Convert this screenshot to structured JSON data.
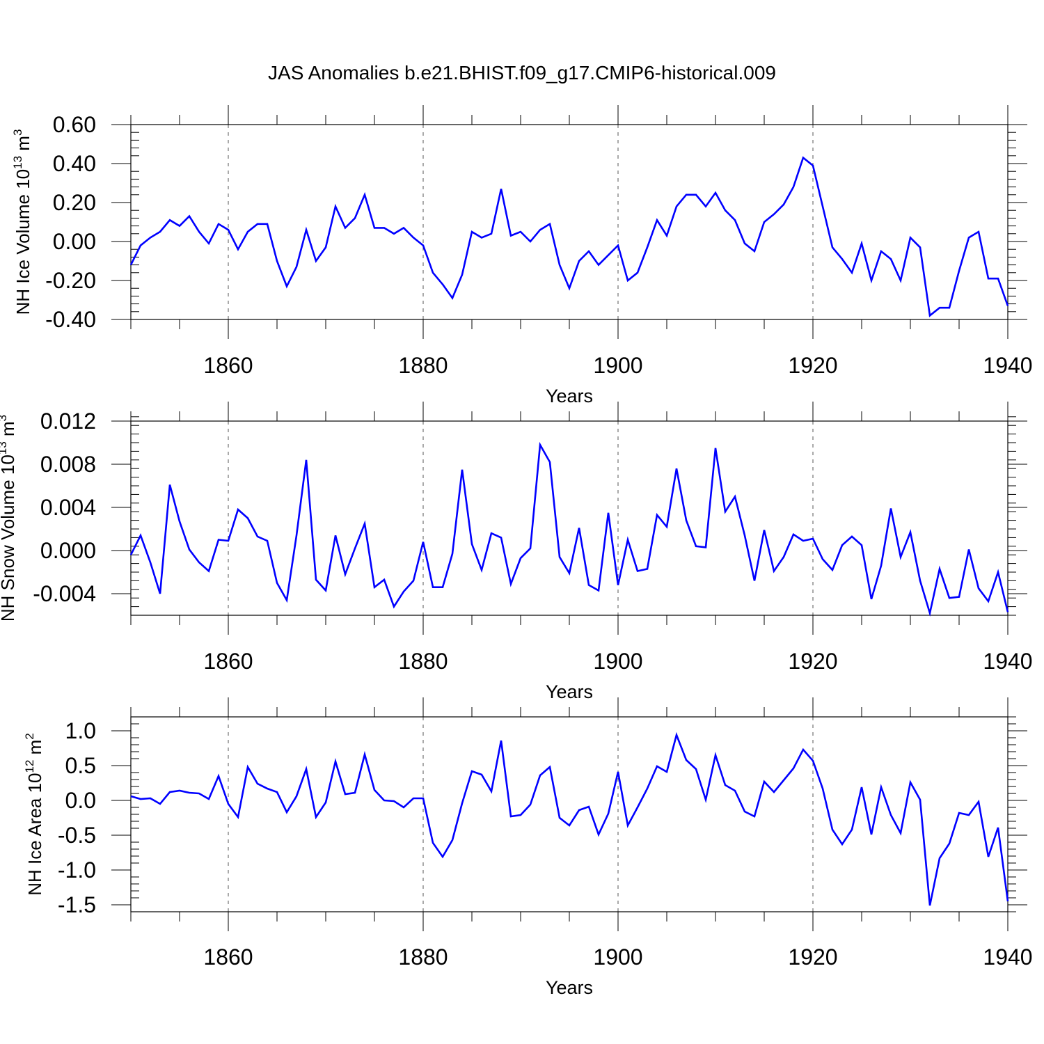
{
  "title": "JAS Anomalies b.e21.BHIST.f09_g17.CMIP6-historical.009",
  "colors": {
    "line": "#0000ff",
    "axis": "#000000",
    "grid": "#555555"
  },
  "chart_data": [
    {
      "type": "line",
      "name": "ice-volume",
      "ylabel": {
        "text": "NH Ice Volume 10",
        "exp": "13",
        "unit": " m",
        "unit_exp": "3"
      },
      "xlabel": "Years",
      "xlim": [
        1850,
        1940
      ],
      "ylim": [
        -0.4,
        0.6
      ],
      "yticks": [
        -0.4,
        -0.2,
        0.0,
        0.2,
        0.4,
        0.6
      ],
      "yticklabels": [
        "-0.40",
        "-0.20",
        "0.00",
        "0.20",
        "0.40",
        "0.60"
      ],
      "yminor": 0.04,
      "xticks": [
        1860,
        1880,
        1900,
        1920,
        1940
      ],
      "xticklabels": [
        "1860",
        "1880",
        "1900",
        "1920",
        "1940"
      ],
      "x_start": 1850,
      "values": [
        -0.12,
        -0.02,
        0.02,
        0.05,
        0.11,
        0.08,
        0.13,
        0.05,
        -0.01,
        0.09,
        0.06,
        -0.04,
        0.05,
        0.09,
        0.09,
        -0.1,
        -0.23,
        -0.13,
        0.06,
        -0.1,
        -0.03,
        0.18,
        0.07,
        0.12,
        0.24,
        0.07,
        0.07,
        0.04,
        0.07,
        0.02,
        -0.02,
        -0.16,
        -0.22,
        -0.29,
        -0.17,
        0.05,
        0.02,
        0.04,
        0.27,
        0.03,
        0.05,
        0.0,
        0.06,
        0.09,
        -0.12,
        -0.24,
        -0.1,
        -0.05,
        -0.12,
        -0.07,
        -0.02,
        -0.2,
        -0.16,
        -0.03,
        0.11,
        0.03,
        0.18,
        0.24,
        0.24,
        0.18,
        0.25,
        0.16,
        0.11,
        -0.01,
        -0.05,
        0.1,
        0.14,
        0.19,
        0.28,
        0.43,
        0.39,
        0.18,
        -0.03,
        -0.09,
        -0.16,
        -0.01,
        -0.2,
        -0.05,
        -0.09,
        -0.2,
        0.02,
        -0.03,
        -0.38,
        -0.34,
        -0.34,
        -0.15,
        0.02,
        0.05,
        -0.19,
        -0.19,
        -0.33
      ]
    },
    {
      "type": "line",
      "name": "snow-volume",
      "ylabel": {
        "text": "NH Snow Volume 10",
        "exp": "13",
        "unit": " m",
        "unit_exp": "3"
      },
      "xlabel": "Years",
      "xlim": [
        1850,
        1940
      ],
      "ylim": [
        -0.006,
        0.012
      ],
      "yticks": [
        -0.004,
        0.0,
        0.004,
        0.008,
        0.012
      ],
      "yticklabels": [
        "-0.004",
        "0.000",
        "0.004",
        "0.008",
        "0.012"
      ],
      "yminor": 0.0008,
      "xticks": [
        1860,
        1880,
        1900,
        1920,
        1940
      ],
      "xticklabels": [
        "1860",
        "1880",
        "1900",
        "1920",
        "1940"
      ],
      "x_start": 1850,
      "values": [
        -0.0004,
        0.0014,
        -0.0011,
        -0.004,
        0.0061,
        0.0027,
        0.0001,
        -0.0011,
        -0.0019,
        0.001,
        0.0009,
        0.0038,
        0.003,
        0.0013,
        0.0009,
        -0.003,
        -0.0046,
        0.0014,
        0.0084,
        -0.0027,
        -0.0037,
        0.0014,
        -0.0022,
        0.0002,
        0.0025,
        -0.0034,
        -0.0027,
        -0.0052,
        -0.0038,
        -0.0028,
        0.0008,
        -0.0034,
        -0.0034,
        -0.0003,
        0.0075,
        0.0006,
        -0.0018,
        0.0016,
        0.0012,
        -0.0031,
        -0.0007,
        0.0002,
        0.0098,
        0.0082,
        -0.0006,
        -0.0021,
        0.0021,
        -0.0032,
        -0.0037,
        0.0035,
        -0.0032,
        0.001,
        -0.0019,
        -0.0017,
        0.0033,
        0.0022,
        0.0076,
        0.0028,
        0.0004,
        0.0003,
        0.0095,
        0.0036,
        0.005,
        0.0014,
        -0.0028,
        0.0019,
        -0.0019,
        -0.0006,
        0.0015,
        0.0009,
        0.0011,
        -0.0008,
        -0.0018,
        0.0005,
        0.0013,
        0.0005,
        -0.0045,
        -0.0014,
        0.0039,
        -0.0006,
        0.0017,
        -0.0028,
        -0.0058,
        -0.0017,
        -0.0044,
        -0.0043,
        0.0001,
        -0.0035,
        -0.0047,
        -0.002,
        -0.0057
      ]
    },
    {
      "type": "line",
      "name": "ice-area",
      "ylabel": {
        "text": "NH Ice Area 10",
        "exp": "12",
        "unit": " m",
        "unit_exp": "2"
      },
      "xlabel": "Years",
      "xlim": [
        1850,
        1940
      ],
      "ylim": [
        -1.6,
        1.2
      ],
      "yticks": [
        -1.5,
        -1.0,
        -0.5,
        0.0,
        0.5,
        1.0
      ],
      "yticklabels": [
        "-1.5",
        "-1.0",
        "-0.5",
        "0.0",
        "0.5",
        "1.0"
      ],
      "yminor": 0.1,
      "xticks": [
        1860,
        1880,
        1900,
        1920,
        1940
      ],
      "xticklabels": [
        "1860",
        "1880",
        "1900",
        "1920",
        "1940"
      ],
      "x_start": 1850,
      "values": [
        0.06,
        0.02,
        0.03,
        -0.05,
        0.12,
        0.14,
        0.11,
        0.1,
        0.02,
        0.35,
        -0.05,
        -0.24,
        0.48,
        0.24,
        0.17,
        0.12,
        -0.17,
        0.06,
        0.45,
        -0.24,
        -0.03,
        0.56,
        0.09,
        0.11,
        0.66,
        0.15,
        0.0,
        -0.01,
        -0.1,
        0.03,
        0.03,
        -0.61,
        -0.81,
        -0.57,
        -0.04,
        0.42,
        0.37,
        0.13,
        0.86,
        -0.23,
        -0.21,
        -0.06,
        0.36,
        0.48,
        -0.25,
        -0.36,
        -0.14,
        -0.09,
        -0.49,
        -0.19,
        0.41,
        -0.36,
        -0.1,
        0.17,
        0.49,
        0.41,
        0.94,
        0.58,
        0.45,
        0.01,
        0.65,
        0.22,
        0.14,
        -0.16,
        -0.23,
        0.27,
        0.12,
        0.29,
        0.46,
        0.73,
        0.57,
        0.17,
        -0.42,
        -0.63,
        -0.42,
        0.19,
        -0.49,
        0.19,
        -0.21,
        -0.47,
        0.26,
        0.01,
        -1.51,
        -0.83,
        -0.62,
        -0.18,
        -0.21,
        -0.02,
        -0.81,
        -0.39,
        -1.45
      ]
    }
  ]
}
